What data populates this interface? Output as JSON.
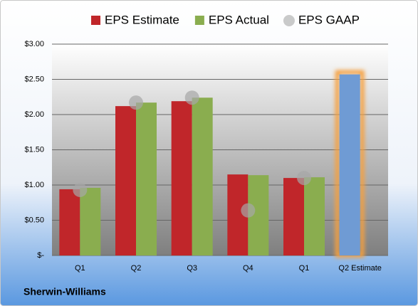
{
  "chart_data": {
    "type": "bar",
    "categories": [
      "Q1",
      "Q2",
      "Q3",
      "Q4",
      "Q1",
      "Q2 Estimate"
    ],
    "series": [
      {
        "name": "EPS Estimate",
        "color": "#c0262a",
        "values": [
          0.94,
          2.12,
          2.19,
          1.15,
          1.1,
          2.57
        ],
        "point_colors": [
          null,
          null,
          null,
          null,
          null,
          "#6f9bd4"
        ]
      },
      {
        "name": "EPS Actual",
        "color": "#8aad4f",
        "values": [
          0.96,
          2.17,
          2.24,
          1.14,
          1.11,
          null
        ]
      },
      {
        "name": "EPS GAAP",
        "color": "#a6a6a6",
        "marker": "circle",
        "values": [
          0.93,
          2.17,
          2.24,
          0.64,
          1.1,
          null
        ]
      }
    ],
    "ylim": [
      0,
      3
    ],
    "yticks": [
      {
        "value": 0,
        "label": "$-"
      },
      {
        "value": 0.5,
        "label": "$0.50"
      },
      {
        "value": 1,
        "label": "$1.00"
      },
      {
        "value": 1.5,
        "label": "$1.50"
      },
      {
        "value": 2,
        "label": "$2.00"
      },
      {
        "value": 2.5,
        "label": "$2.50"
      },
      {
        "value": 3,
        "label": "$3.00"
      }
    ],
    "grid": true,
    "legend": "top",
    "footer": "Sherwin-Williams"
  }
}
